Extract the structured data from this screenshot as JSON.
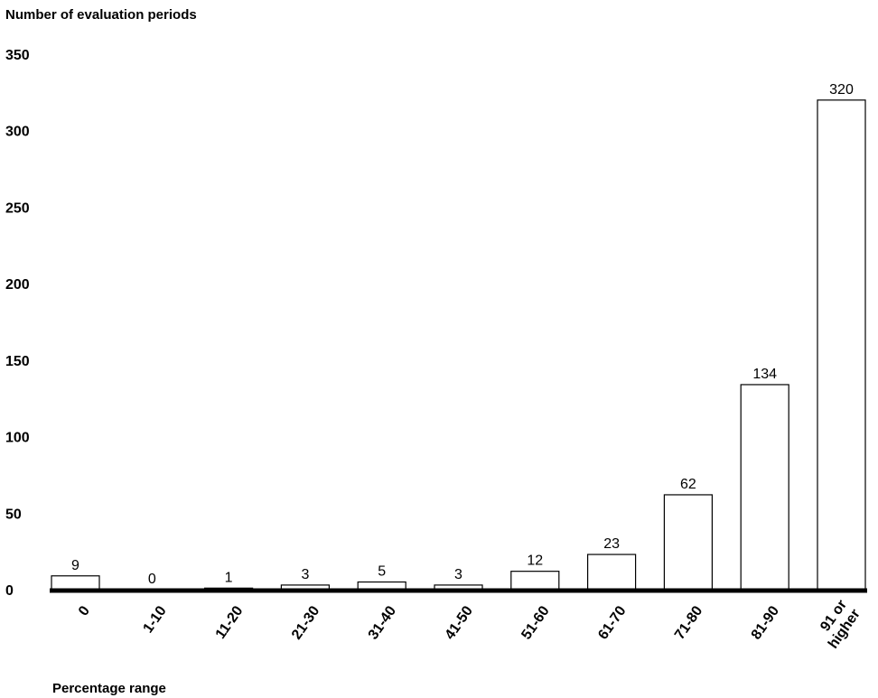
{
  "chart_data": {
    "type": "bar",
    "ylabel": "Number of evaluation periods",
    "xlabel": "Percentage range",
    "ylim": [
      0,
      350
    ],
    "yticks": [
      "0",
      "50",
      "100",
      "150",
      "200",
      "250",
      "300",
      "350"
    ],
    "categories": [
      [
        "0"
      ],
      [
        "1-10"
      ],
      [
        "11-20"
      ],
      [
        "21-30"
      ],
      [
        "31-40"
      ],
      [
        "41-50"
      ],
      [
        "51-60"
      ],
      [
        "61-70"
      ],
      [
        "71-80"
      ],
      [
        "81-90"
      ],
      [
        "91 or",
        "higher"
      ]
    ],
    "values": [
      9,
      0,
      1,
      3,
      5,
      3,
      12,
      23,
      62,
      134,
      320
    ],
    "data_labels": [
      "9",
      "0",
      "1",
      "3",
      "5",
      "3",
      "12",
      "23",
      "62",
      "134",
      "320"
    ],
    "bar_fill": "#ffffff",
    "bar_stroke": "#000000",
    "grid": false,
    "legend": "none"
  }
}
